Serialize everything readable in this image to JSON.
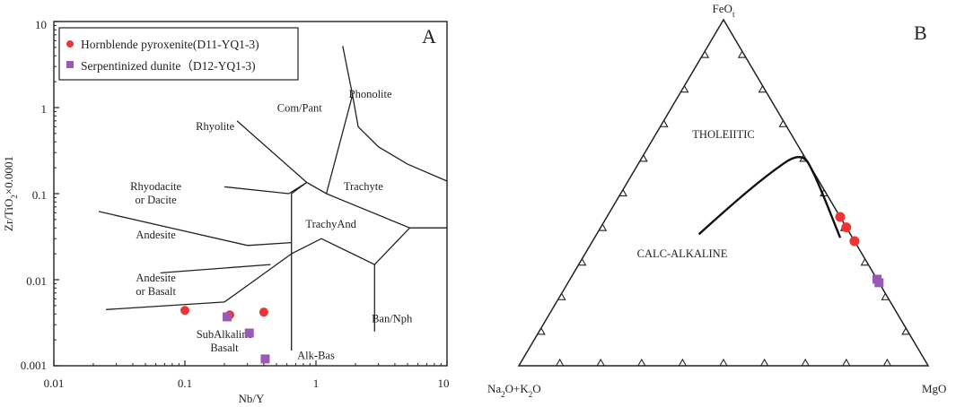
{
  "chart_data": [
    {
      "type": "scatter",
      "panel_label": "A",
      "xlabel": "Nb/Y",
      "ylabel": "Zr/TiO2×0.0001",
      "xscale": "log",
      "yscale": "log",
      "xlim": [
        0.01,
        10
      ],
      "ylim": [
        0.001,
        10
      ],
      "x_ticks": [
        "0.01",
        "0.1",
        "1",
        "10"
      ],
      "y_ticks": [
        "0.001",
        "0.01",
        "0.1",
        "1",
        "10"
      ],
      "legend_position": "top-left",
      "series": [
        {
          "name": "Hornblende pyroxenite(D11-YQ1-3)",
          "marker": "circle",
          "color": "#ee3333",
          "points": [
            [
              0.1,
              0.0044
            ],
            [
              0.22,
              0.0039
            ],
            [
              0.4,
              0.0042
            ]
          ]
        },
        {
          "name": "Serpentinized dunite（D12-YQ1-3)",
          "marker": "square",
          "color": "#9b59b6",
          "points": [
            [
              0.21,
              0.0037
            ],
            [
              0.31,
              0.0024
            ],
            [
              0.41,
              0.0012
            ]
          ]
        }
      ],
      "field_labels": [
        {
          "lines": [
            "Phonolite"
          ],
          "at": [
            2.6,
            1.3
          ]
        },
        {
          "lines": [
            "Com/Pant"
          ],
          "at": [
            0.75,
            0.9
          ]
        },
        {
          "lines": [
            "Rhyolite"
          ],
          "at": [
            0.17,
            0.55
          ]
        },
        {
          "lines": [
            "Rhyodacite",
            "or Dacite"
          ],
          "at": [
            0.06,
            0.11
          ]
        },
        {
          "lines": [
            "Trachyte"
          ],
          "at": [
            2.3,
            0.11
          ]
        },
        {
          "lines": [
            "TrachyAnd"
          ],
          "at": [
            1.3,
            0.04
          ]
        },
        {
          "lines": [
            "Andesite"
          ],
          "at": [
            0.06,
            0.03
          ]
        },
        {
          "lines": [
            "Andesite",
            "or Basalt"
          ],
          "at": [
            0.06,
            0.0095
          ]
        },
        {
          "lines": [
            "Ban/Nph"
          ],
          "at": [
            3.8,
            0.0032
          ]
        },
        {
          "lines": [
            "SubAlkaline",
            "Basalt"
          ],
          "at": [
            0.2,
            0.0021
          ]
        },
        {
          "lines": [
            "Alk-Bas"
          ],
          "at": [
            1,
            0.0012
          ]
        }
      ],
      "field_boundaries": [
        [
          [
            0.025,
            0.0045
          ],
          [
            0.2,
            0.0055
          ],
          [
            0.32,
            0.0092
          ],
          [
            0.65,
            0.02
          ],
          [
            0.65,
            0.0015
          ]
        ],
        [
          [
            0.065,
            0.012
          ],
          [
            0.45,
            0.015
          ]
        ],
        [
          [
            0.022,
            0.062
          ],
          [
            0.3,
            0.025
          ],
          [
            0.65,
            0.027
          ]
        ],
        [
          [
            0.2,
            0.12
          ],
          [
            0.62,
            0.1
          ],
          [
            0.85,
            0.135
          ],
          [
            0.65,
            0.1
          ],
          [
            0.65,
            0.02
          ]
        ],
        [
          [
            0.25,
            0.7
          ],
          [
            0.85,
            0.135
          ],
          [
            1.2,
            0.1
          ],
          [
            5.2,
            0.04
          ],
          [
            10,
            0.04
          ]
        ],
        [
          [
            0.65,
            0.02
          ],
          [
            1.1,
            0.03
          ],
          [
            2.8,
            0.015
          ],
          [
            5.2,
            0.04
          ]
        ],
        [
          [
            1.2,
            0.1
          ],
          [
            1.9,
            1.4
          ],
          [
            2.1,
            0.6
          ],
          [
            3,
            0.35
          ],
          [
            5,
            0.22
          ],
          [
            10,
            0.14
          ]
        ],
        [
          [
            1.9,
            1.4
          ],
          [
            1.6,
            5.2
          ]
        ],
        [
          [
            2.8,
            0.015
          ],
          [
            2.8,
            0.0025
          ]
        ]
      ]
    },
    {
      "type": "ternary",
      "panel_label": "B",
      "vertex_labels": {
        "top": "FeOt",
        "left": "Na2O+K2O",
        "right": "MgO"
      },
      "field_labels": {
        "upper": "THOLEIITIC",
        "lower": "CALC-ALKALINE"
      },
      "series": [
        {
          "name": "Hornblende pyroxenite(D11-YQ1-3)",
          "marker": "circle",
          "color": "#ee3333",
          "points": [
            {
              "FeOt": 0.43,
              "MgO": 0.57,
              "Na2O+K2O": 0.0
            },
            {
              "FeOt": 0.4,
              "MgO": 0.6,
              "Na2O+K2O": 0.0
            },
            {
              "FeOt": 0.36,
              "MgO": 0.64,
              "Na2O+K2O": 0.0
            }
          ]
        },
        {
          "name": "Serpentinized dunite（D12-YQ1-3)",
          "marker": "square",
          "color": "#9b59b6",
          "points": [
            {
              "FeOt": 0.25,
              "MgO": 0.75,
              "Na2O+K2O": 0.0
            },
            {
              "FeOt": 0.24,
              "MgO": 0.76,
              "Na2O+K2O": 0.0
            }
          ]
        }
      ],
      "boundary_curve": [
        {
          "FeOt": 0.38,
          "MgO": 0.25,
          "Na2O+K2O": 0.37
        },
        {
          "FeOt": 0.45,
          "MgO": 0.28,
          "Na2O+K2O": 0.27
        },
        {
          "FeOt": 0.55,
          "MgO": 0.33,
          "Na2O+K2O": 0.12
        },
        {
          "FeOt": 0.62,
          "MgO": 0.38,
          "Na2O+K2O": 0.0
        },
        {
          "FeOt": 0.56,
          "MgO": 0.45,
          "Na2O+K2O": 0.0
        },
        {
          "FeOt": 0.37,
          "MgO": 0.6,
          "Na2O+K2O": 0.03
        }
      ]
    }
  ]
}
